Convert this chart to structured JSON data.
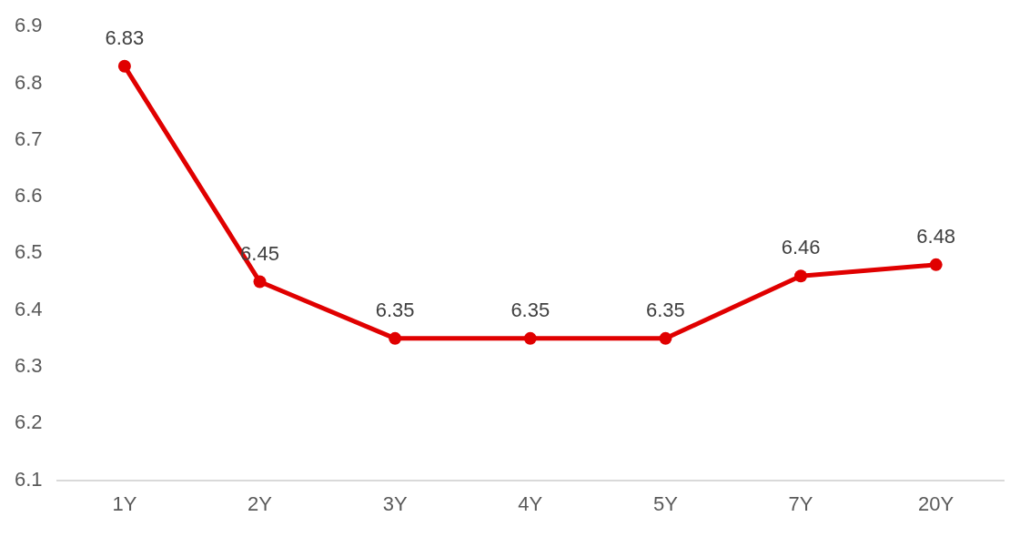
{
  "chart_data": {
    "type": "line",
    "categories": [
      "1Y",
      "2Y",
      "3Y",
      "4Y",
      "5Y",
      "7Y",
      "20Y"
    ],
    "series": [
      {
        "color": "#e00000",
        "values": [
          6.83,
          6.45,
          6.35,
          6.35,
          6.35,
          6.46,
          6.48
        ]
      }
    ],
    "ylim": [
      6.1,
      6.9
    ],
    "yticks": [
      6.1,
      6.2,
      6.3,
      6.4,
      6.5,
      6.6,
      6.7,
      6.8,
      6.9
    ],
    "grid": false,
    "legend": false,
    "marker": "circle",
    "line_style": "solid",
    "data_labels": true
  }
}
